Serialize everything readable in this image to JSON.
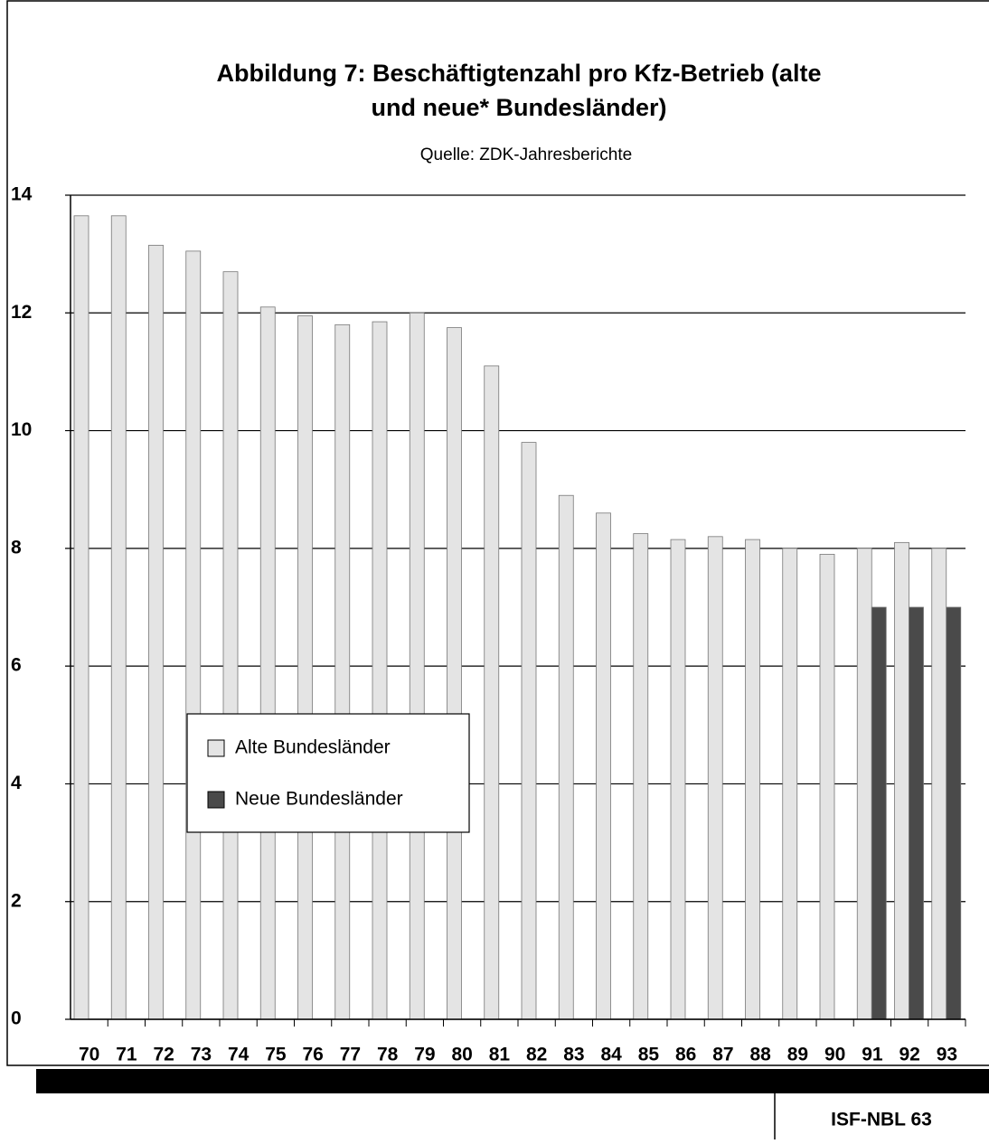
{
  "chart_data": {
    "type": "bar",
    "title": [
      "Abbildung 7: Beschäftigtenzahl pro Kfz-Betrieb  (alte",
      "und neue* Bundesländer)"
    ],
    "subtitle": "Quelle: ZDK-Jahresberichte",
    "categories": [
      "70",
      "71",
      "72",
      "73",
      "74",
      "75",
      "76",
      "77",
      "78",
      "79",
      "80",
      "81",
      "82",
      "83",
      "84",
      "85",
      "86",
      "87",
      "88",
      "89",
      "90",
      "91",
      "92",
      "93"
    ],
    "series": [
      {
        "name": "Alte Bundesländer",
        "color": "#e4e4e4",
        "values": [
          13.65,
          13.65,
          13.15,
          13.05,
          12.7,
          12.1,
          11.95,
          11.8,
          11.85,
          12.0,
          11.75,
          11.1,
          9.8,
          8.9,
          8.6,
          8.25,
          8.15,
          8.2,
          8.15,
          8.0,
          7.9,
          8.0,
          8.1,
          8.0
        ]
      },
      {
        "name": "Neue Bundesländer",
        "color": "#4a4a4a",
        "values": [
          null,
          null,
          null,
          null,
          null,
          null,
          null,
          null,
          null,
          null,
          null,
          null,
          null,
          null,
          null,
          null,
          null,
          null,
          null,
          null,
          null,
          7,
          7,
          7
        ]
      }
    ],
    "ylim": [
      0,
      14
    ],
    "yticks": [
      0,
      2,
      4,
      6,
      8,
      10,
      12,
      14
    ],
    "grid": true
  },
  "footer": "ISF-NBL 63"
}
